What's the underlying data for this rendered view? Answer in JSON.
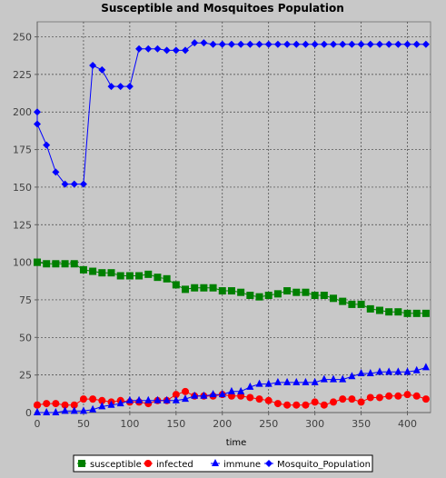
{
  "chart_data": {
    "type": "line",
    "title": "Susceptible and Mosquitoes Population",
    "xlabel": "time",
    "ylabel": "",
    "xlim": [
      0,
      425
    ],
    "ylim": [
      0,
      260
    ],
    "xticks": [
      0,
      50,
      100,
      150,
      200,
      250,
      300,
      350,
      400
    ],
    "yticks": [
      0,
      25,
      50,
      75,
      100,
      125,
      150,
      175,
      200,
      225,
      250
    ],
    "grid": true,
    "legend_position": "bottom",
    "x": [
      0,
      0,
      10,
      20,
      30,
      40,
      50,
      60,
      70,
      80,
      90,
      100,
      110,
      120,
      130,
      140,
      150,
      160,
      170,
      180,
      190,
      200,
      210,
      220,
      230,
      240,
      250,
      260,
      270,
      280,
      290,
      300,
      310,
      320,
      330,
      340,
      350,
      360,
      370,
      380,
      390,
      400,
      410,
      420
    ],
    "series": [
      {
        "name": "susceptible",
        "color": "#008000",
        "marker": "square",
        "values": [
          100,
          100,
          99,
          99,
          99,
          99,
          95,
          94,
          93,
          93,
          91,
          91,
          91,
          92,
          90,
          89,
          85,
          82,
          83,
          83,
          83,
          81,
          81,
          80,
          78,
          77,
          78,
          79,
          81,
          80,
          80,
          78,
          78,
          76,
          74,
          72,
          72,
          69,
          68,
          67,
          67,
          66,
          66,
          66
        ]
      },
      {
        "name": "infected",
        "color": "#ff0000",
        "marker": "circle",
        "values": [
          5,
          5,
          6,
          6,
          5,
          5,
          9,
          9,
          8,
          7,
          8,
          7,
          7,
          6,
          8,
          8,
          12,
          14,
          11,
          11,
          11,
          12,
          11,
          11,
          10,
          9,
          8,
          6,
          5,
          5,
          5,
          7,
          5,
          7,
          9,
          9,
          7,
          10,
          10,
          11,
          11,
          12,
          11,
          9
        ]
      },
      {
        "name": "immune",
        "color": "#0000ff",
        "marker": "triangle",
        "values": [
          0,
          0,
          0,
          0,
          1,
          1,
          1,
          2,
          4,
          5,
          6,
          8,
          8,
          8,
          8,
          8,
          8,
          9,
          11,
          11,
          12,
          12,
          14,
          14,
          17,
          19,
          19,
          20,
          20,
          20,
          20,
          20,
          22,
          22,
          22,
          24,
          26,
          26,
          27,
          27,
          27,
          27,
          28,
          30
        ]
      },
      {
        "name": "Mosquito_Population",
        "color": "#0000ff",
        "marker": "diamond",
        "values": [
          200,
          192,
          178,
          160,
          152,
          152,
          152,
          231,
          228,
          217,
          217,
          217,
          242,
          242,
          242,
          241,
          241,
          241,
          246,
          246,
          245,
          245,
          245,
          245,
          245,
          245,
          245,
          245,
          245,
          245,
          245,
          245,
          245,
          245,
          245,
          245,
          245,
          245,
          245,
          245,
          245,
          245,
          245,
          245
        ]
      }
    ]
  }
}
